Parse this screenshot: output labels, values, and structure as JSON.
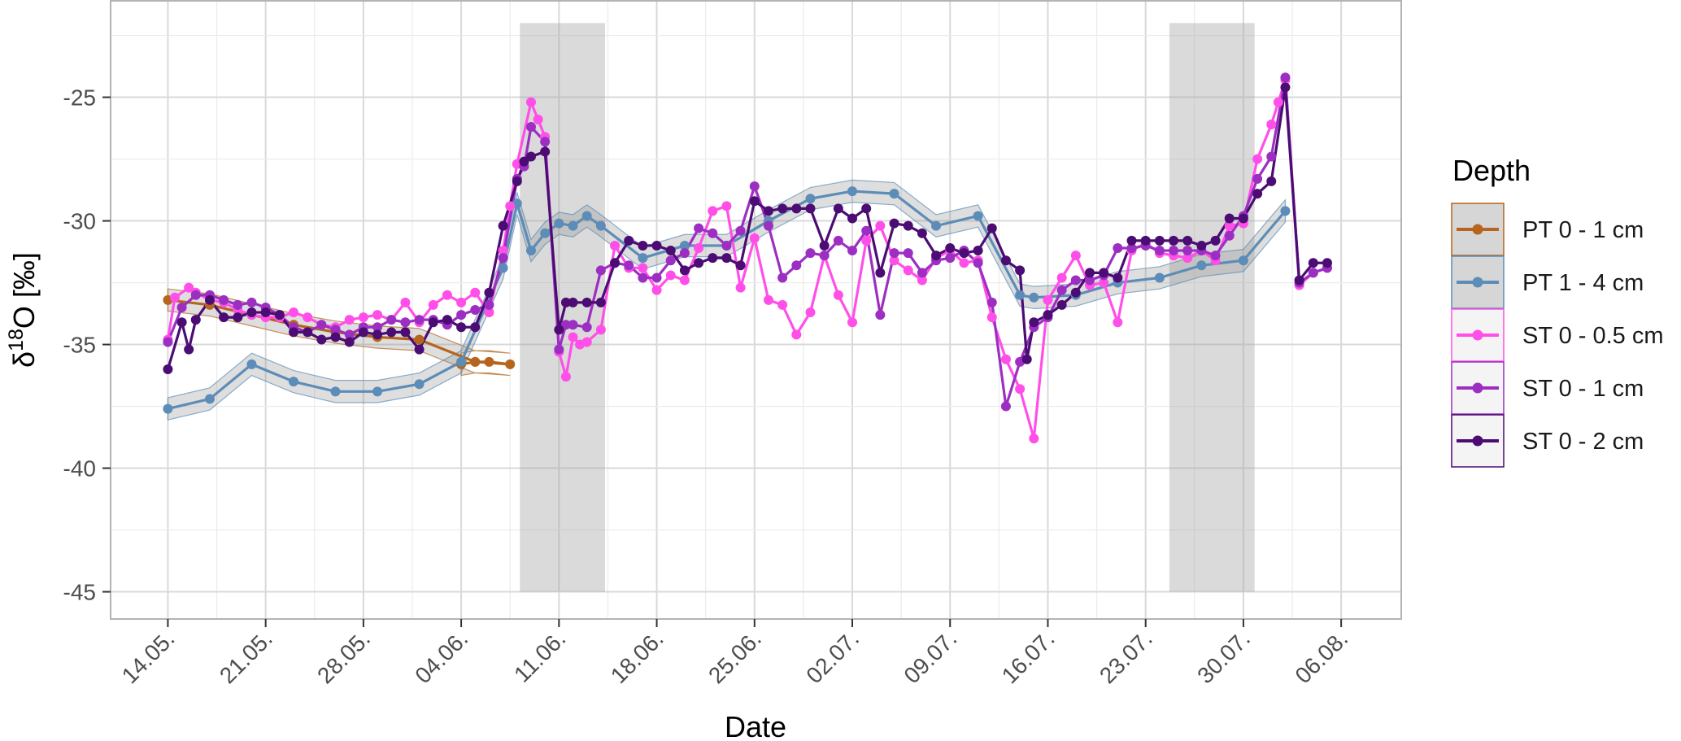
{
  "chart_data": {
    "type": "line",
    "xlabel": "Date",
    "ylabel_main": "δ",
    "ylabel_sup": "18",
    "ylabel_rest": "O [‰]",
    "x_ticks": [
      "14.05.",
      "21.05.",
      "28.05.",
      "04.06.",
      "11.06.",
      "18.06.",
      "25.06.",
      "02.07.",
      "09.07.",
      "16.07.",
      "23.07.",
      "30.07.",
      "06.08."
    ],
    "x_range": [
      -4.1,
      88.3
    ],
    "y_ticks": [
      -25,
      -30,
      -35,
      -40,
      -45
    ],
    "ylim": [
      -46.1,
      -21.1
    ],
    "grid": true,
    "shaded_periods": [
      {
        "start": 25.2,
        "end": 31.3
      },
      {
        "start": 71.7,
        "end": 77.8
      }
    ],
    "legend": {
      "title": "Depth",
      "position": "right"
    },
    "series": [
      {
        "name": "PT 0 - 1 cm",
        "color": "#B5651D",
        "ribbon": true,
        "points": [
          [
            0,
            -33.2
          ],
          [
            3,
            -33.4
          ],
          [
            6,
            -33.8
          ],
          [
            9,
            -34.2
          ],
          [
            12,
            -34.5
          ],
          [
            15,
            -34.7
          ],
          [
            18,
            -34.8
          ],
          [
            22,
            -35.7
          ],
          [
            23,
            -35.7
          ],
          [
            24.5,
            -35.8
          ],
          [
            22,
            -35.7
          ],
          [
            21,
            -35.8
          ]
        ]
      },
      {
        "name": "PT 1 - 4 cm",
        "color": "#5B8DB8",
        "ribbon": true,
        "points": [
          [
            0,
            -37.6
          ],
          [
            3,
            -37.2
          ],
          [
            6,
            -35.8
          ],
          [
            9,
            -36.5
          ],
          [
            12,
            -36.9
          ],
          [
            15,
            -36.9
          ],
          [
            18,
            -36.6
          ],
          [
            21,
            -35.7
          ],
          [
            24,
            -31.9
          ],
          [
            25,
            -29.3
          ],
          [
            26,
            -31.2
          ],
          [
            27,
            -30.5
          ],
          [
            28,
            -30.1
          ],
          [
            29,
            -30.2
          ],
          [
            30,
            -29.8
          ],
          [
            31,
            -30.2
          ],
          [
            34,
            -31.5
          ],
          [
            37,
            -31
          ],
          [
            40,
            -31
          ],
          [
            43,
            -30
          ],
          [
            46,
            -29.1
          ],
          [
            49,
            -28.8
          ],
          [
            52,
            -28.9
          ],
          [
            55,
            -30.2
          ],
          [
            58,
            -29.8
          ],
          [
            61,
            -33
          ],
          [
            62,
            -33.1
          ],
          [
            65,
            -33
          ],
          [
            68,
            -32.5
          ],
          [
            71,
            -32.3
          ],
          [
            74,
            -31.8
          ],
          [
            77,
            -31.6
          ],
          [
            80,
            -29.6
          ]
        ]
      },
      {
        "name": "ST 0 - 0.5 cm",
        "color": "#FF4FE8",
        "ribbon": false,
        "points": [
          [
            0,
            -34.8
          ],
          [
            0.5,
            -33.1
          ],
          [
            1.5,
            -32.7
          ],
          [
            2,
            -32.9
          ],
          [
            3,
            -33.2
          ],
          [
            4,
            -33.3
          ],
          [
            5,
            -33.6
          ],
          [
            6,
            -33.8
          ],
          [
            7,
            -33.9
          ],
          [
            8,
            -33.9
          ],
          [
            9,
            -33.7
          ],
          [
            10,
            -33.9
          ],
          [
            11,
            -34.2
          ],
          [
            12,
            -34.3
          ],
          [
            13,
            -34
          ],
          [
            14,
            -33.9
          ],
          [
            15,
            -33.8
          ],
          [
            16,
            -34
          ],
          [
            17,
            -33.3
          ],
          [
            18,
            -34.1
          ],
          [
            19,
            -33.4
          ],
          [
            20,
            -33
          ],
          [
            21,
            -33.3
          ],
          [
            22,
            -32.9
          ],
          [
            23,
            -33.7
          ],
          [
            24,
            -31.2
          ],
          [
            24.5,
            -29.4
          ],
          [
            25,
            -27.7
          ],
          [
            26,
            -25.2
          ],
          [
            26.5,
            -25.9
          ],
          [
            27,
            -26.6
          ],
          [
            28,
            -35.3
          ],
          [
            28.5,
            -36.3
          ],
          [
            29,
            -34.7
          ],
          [
            29.5,
            -35
          ],
          [
            30,
            -34.9
          ],
          [
            31,
            -34.4
          ],
          [
            32,
            -31
          ],
          [
            33,
            -31.9
          ],
          [
            34,
            -31.9
          ],
          [
            35,
            -32.8
          ],
          [
            36,
            -32.2
          ],
          [
            37,
            -32.4
          ],
          [
            38,
            -31.1
          ],
          [
            39,
            -29.6
          ],
          [
            40,
            -29.4
          ],
          [
            41,
            -32.7
          ],
          [
            42,
            -30.7
          ],
          [
            43,
            -33.2
          ],
          [
            44,
            -33.4
          ],
          [
            45,
            -34.6
          ],
          [
            46,
            -33.7
          ],
          [
            47,
            -31.4
          ],
          [
            48,
            -33
          ],
          [
            49,
            -34.1
          ],
          [
            50,
            -30.8
          ],
          [
            51,
            -30.2
          ],
          [
            52,
            -31.6
          ],
          [
            53,
            -32
          ],
          [
            54,
            -32.4
          ],
          [
            55,
            -31.5
          ],
          [
            56,
            -31.2
          ],
          [
            57,
            -31.7
          ],
          [
            58,
            -31.6
          ],
          [
            59,
            -33.9
          ],
          [
            60,
            -35.6
          ],
          [
            61,
            -36.8
          ],
          [
            62,
            -38.8
          ],
          [
            63,
            -33.2
          ],
          [
            64,
            -32.3
          ],
          [
            65,
            -31.4
          ],
          [
            66,
            -32.6
          ],
          [
            67,
            -32.5
          ],
          [
            68,
            -34.1
          ],
          [
            69,
            -31.2
          ],
          [
            70,
            -30.9
          ],
          [
            71,
            -31.3
          ],
          [
            72,
            -31.4
          ],
          [
            73,
            -31.5
          ],
          [
            74,
            -31.2
          ],
          [
            75,
            -31.6
          ],
          [
            76,
            -30.2
          ],
          [
            77,
            -30.1
          ],
          [
            78,
            -27.5
          ],
          [
            79,
            -26.1
          ],
          [
            79.5,
            -25.2
          ],
          [
            80,
            -24.3
          ],
          [
            81,
            -32.6
          ],
          [
            82,
            -32.1
          ],
          [
            83,
            -31.9
          ]
        ]
      },
      {
        "name": "ST 0 - 1 cm",
        "color": "#9C2FC2",
        "ribbon": false,
        "points": [
          [
            0,
            -34.9
          ],
          [
            1,
            -33.5
          ],
          [
            2,
            -33
          ],
          [
            3,
            -33
          ],
          [
            4,
            -33.2
          ],
          [
            5,
            -33.4
          ],
          [
            6,
            -33.3
          ],
          [
            7,
            -33.5
          ],
          [
            8,
            -33.8
          ],
          [
            9,
            -34.3
          ],
          [
            10,
            -34.5
          ],
          [
            11,
            -34.2
          ],
          [
            12,
            -34.4
          ],
          [
            13,
            -34.6
          ],
          [
            14,
            -34.3
          ],
          [
            15,
            -34.3
          ],
          [
            16,
            -34
          ],
          [
            17,
            -34.1
          ],
          [
            18,
            -34
          ],
          [
            19,
            -34
          ],
          [
            20,
            -34.2
          ],
          [
            21,
            -33.8
          ],
          [
            22,
            -33.6
          ],
          [
            23,
            -33.4
          ],
          [
            24,
            -31.5
          ],
          [
            25,
            -28.3
          ],
          [
            25.5,
            -27.8
          ],
          [
            26,
            -26.2
          ],
          [
            27,
            -26.8
          ],
          [
            28,
            -35.2
          ],
          [
            28.5,
            -34.2
          ],
          [
            29,
            -34.2
          ],
          [
            30,
            -34.3
          ],
          [
            31,
            -32
          ],
          [
            32,
            -31.7
          ],
          [
            33,
            -31.8
          ],
          [
            34,
            -32.3
          ],
          [
            35,
            -32.3
          ],
          [
            36,
            -31.6
          ],
          [
            37,
            -31.3
          ],
          [
            38,
            -30.3
          ],
          [
            39,
            -30.5
          ],
          [
            40,
            -31
          ],
          [
            41,
            -30.4
          ],
          [
            42,
            -28.6
          ],
          [
            43,
            -30.2
          ],
          [
            44,
            -32.3
          ],
          [
            45,
            -31.8
          ],
          [
            46,
            -31.3
          ],
          [
            47,
            -31.4
          ],
          [
            48,
            -30.8
          ],
          [
            49,
            -31.2
          ],
          [
            50,
            -30.4
          ],
          [
            51,
            -33.8
          ],
          [
            52,
            -31.3
          ],
          [
            53,
            -31.3
          ],
          [
            54,
            -32.1
          ],
          [
            55,
            -31.6
          ],
          [
            56,
            -31.5
          ],
          [
            57,
            -31.2
          ],
          [
            58,
            -31.7
          ],
          [
            59,
            -33.3
          ],
          [
            60,
            -37.5
          ],
          [
            61,
            -35.7
          ],
          [
            62,
            -34.3
          ],
          [
            63,
            -33.9
          ],
          [
            64,
            -32.8
          ],
          [
            65,
            -32.4
          ],
          [
            66,
            -32.4
          ],
          [
            67,
            -32.2
          ],
          [
            68,
            -31.1
          ],
          [
            69,
            -31.1
          ],
          [
            70,
            -31
          ],
          [
            71,
            -31.2
          ],
          [
            72,
            -31.2
          ],
          [
            73,
            -31.2
          ],
          [
            74,
            -31.2
          ],
          [
            75,
            -31.4
          ],
          [
            76,
            -30.6
          ],
          [
            77,
            -29.8
          ],
          [
            78,
            -28.3
          ],
          [
            79,
            -27.4
          ],
          [
            80,
            -24.2
          ],
          [
            81,
            -32.5
          ],
          [
            82,
            -32.1
          ],
          [
            83,
            -31.9
          ]
        ]
      },
      {
        "name": "ST 0 - 2 cm",
        "color": "#4B0C73",
        "ribbon": false,
        "points": [
          [
            0,
            -36
          ],
          [
            1,
            -34.1
          ],
          [
            1.5,
            -35.2
          ],
          [
            2,
            -34
          ],
          [
            3,
            -33.2
          ],
          [
            4,
            -33.9
          ],
          [
            5,
            -33.9
          ],
          [
            6,
            -33.7
          ],
          [
            7,
            -33.7
          ],
          [
            8,
            -33.8
          ],
          [
            9,
            -34.5
          ],
          [
            10,
            -34.5
          ],
          [
            11,
            -34.8
          ],
          [
            12,
            -34.7
          ],
          [
            13,
            -34.9
          ],
          [
            14,
            -34.5
          ],
          [
            15,
            -34.6
          ],
          [
            16,
            -34.5
          ],
          [
            17,
            -34.5
          ],
          [
            18,
            -35.2
          ],
          [
            19,
            -34.1
          ],
          [
            20,
            -34
          ],
          [
            21,
            -34.3
          ],
          [
            22,
            -34.3
          ],
          [
            23,
            -32.9
          ],
          [
            24,
            -30.2
          ],
          [
            25,
            -28.4
          ],
          [
            25.5,
            -27.6
          ],
          [
            26,
            -27.4
          ],
          [
            27,
            -27.2
          ],
          [
            28,
            -34.4
          ],
          [
            28.5,
            -33.3
          ],
          [
            29,
            -33.3
          ],
          [
            30,
            -33.3
          ],
          [
            31,
            -33.3
          ],
          [
            32,
            -31.7
          ],
          [
            33,
            -30.8
          ],
          [
            34,
            -31
          ],
          [
            35,
            -31
          ],
          [
            36,
            -31.2
          ],
          [
            37,
            -32
          ],
          [
            38,
            -31.7
          ],
          [
            39,
            -31.5
          ],
          [
            40,
            -31.5
          ],
          [
            41,
            -31.8
          ],
          [
            42,
            -29.2
          ],
          [
            43,
            -29.6
          ],
          [
            44,
            -29.5
          ],
          [
            45,
            -29.5
          ],
          [
            46,
            -29.5
          ],
          [
            47,
            -31
          ],
          [
            48,
            -29.5
          ],
          [
            49,
            -29.9
          ],
          [
            50,
            -29.5
          ],
          [
            51,
            -32.1
          ],
          [
            52,
            -30.1
          ],
          [
            53,
            -30.2
          ],
          [
            54,
            -30.5
          ],
          [
            55,
            -31.4
          ],
          [
            56,
            -31.1
          ],
          [
            57,
            -31.3
          ],
          [
            58,
            -31.2
          ],
          [
            59,
            -30.3
          ],
          [
            60,
            -31.6
          ],
          [
            61,
            -32
          ],
          [
            61.5,
            -35.6
          ],
          [
            62,
            -34.1
          ],
          [
            63,
            -33.8
          ],
          [
            64,
            -33.4
          ],
          [
            65,
            -32.9
          ],
          [
            66,
            -32.1
          ],
          [
            67,
            -32.1
          ],
          [
            68,
            -32.3
          ],
          [
            69,
            -30.8
          ],
          [
            70,
            -30.8
          ],
          [
            71,
            -30.8
          ],
          [
            72,
            -30.8
          ],
          [
            73,
            -30.8
          ],
          [
            74,
            -31
          ],
          [
            75,
            -30.8
          ],
          [
            76,
            -29.9
          ],
          [
            77,
            -29.9
          ],
          [
            78,
            -28.9
          ],
          [
            79,
            -28.4
          ],
          [
            80,
            -24.6
          ],
          [
            81,
            -32.4
          ],
          [
            82,
            -31.7
          ],
          [
            83,
            -31.7
          ]
        ]
      }
    ]
  }
}
